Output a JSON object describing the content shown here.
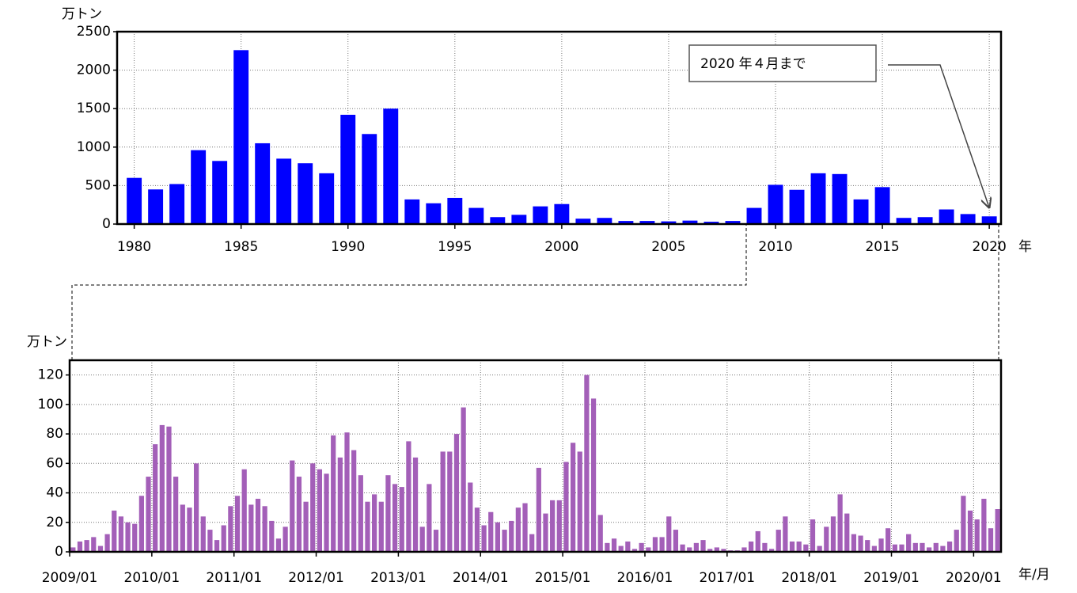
{
  "chart_data": [
    {
      "type": "bar",
      "y_label": "万トン",
      "x_label": "年",
      "annotation": "2020 年４月まで",
      "color": "#0000ff",
      "grid": true,
      "x": [
        1980,
        1981,
        1982,
        1983,
        1984,
        1985,
        1986,
        1987,
        1988,
        1989,
        1990,
        1991,
        1992,
        1993,
        1994,
        1995,
        1996,
        1997,
        1998,
        1999,
        2000,
        2001,
        2002,
        2003,
        2004,
        2005,
        2006,
        2007,
        2008,
        2009,
        2010,
        2011,
        2012,
        2013,
        2014,
        2015,
        2016,
        2017,
        2018,
        2019,
        2020
      ],
      "values": [
        600,
        450,
        520,
        960,
        820,
        2260,
        1050,
        850,
        790,
        660,
        1420,
        1170,
        1500,
        320,
        270,
        340,
        210,
        90,
        120,
        230,
        260,
        70,
        80,
        40,
        40,
        35,
        45,
        30,
        40,
        210,
        510,
        445,
        660,
        650,
        320,
        480,
        80,
        90,
        190,
        130,
        100
      ],
      "xlim": [
        1979.2,
        2020.55
      ],
      "xticks": [
        1980,
        1985,
        1990,
        1995,
        2000,
        2005,
        2010,
        2015,
        2020
      ],
      "ylim": [
        0,
        2500
      ],
      "yticks": [
        0,
        500,
        1000,
        1500,
        2000,
        2500
      ]
    },
    {
      "type": "bar",
      "y_label": "万トン",
      "x_label": "年/月",
      "color": "#a35fb8",
      "grid": true,
      "categories": [
        "2009/01",
        null,
        null,
        null,
        null,
        null,
        null,
        null,
        null,
        null,
        null,
        null,
        "2010/01",
        null,
        null,
        null,
        null,
        null,
        null,
        null,
        null,
        null,
        null,
        null,
        "2011/01",
        null,
        null,
        null,
        null,
        null,
        null,
        null,
        null,
        null,
        null,
        null,
        "2012/01",
        null,
        null,
        null,
        null,
        null,
        null,
        null,
        null,
        null,
        null,
        null,
        "2013/01",
        null,
        null,
        null,
        null,
        null,
        null,
        null,
        null,
        null,
        null,
        null,
        "2014/01",
        null,
        null,
        null,
        null,
        null,
        null,
        null,
        null,
        null,
        null,
        null,
        "2015/01",
        null,
        null,
        null,
        null,
        null,
        null,
        null,
        null,
        null,
        null,
        null,
        "2016/01",
        null,
        null,
        null,
        null,
        null,
        null,
        null,
        null,
        null,
        null,
        null,
        "2017/01",
        null,
        null,
        null,
        null,
        null,
        null,
        null,
        null,
        null,
        null,
        null,
        "2018/01",
        null,
        null,
        null,
        null,
        null,
        null,
        null,
        null,
        null,
        null,
        null,
        "2019/01",
        null,
        null,
        null,
        null,
        null,
        null,
        null,
        null,
        null,
        null,
        null,
        "2020/01",
        null,
        null,
        null
      ],
      "values": [
        3,
        7,
        8,
        10,
        4,
        12,
        28,
        24,
        20,
        19,
        38,
        51,
        73,
        86,
        85,
        51,
        32,
        30,
        60,
        24,
        15,
        8,
        18,
        31,
        38,
        56,
        32,
        36,
        31,
        21,
        9,
        17,
        62,
        51,
        34,
        60,
        56,
        53,
        79,
        64,
        81,
        69,
        52,
        34,
        39,
        34,
        52,
        46,
        44,
        75,
        64,
        17,
        46,
        15,
        68,
        68,
        80,
        98,
        47,
        30,
        18,
        27,
        20,
        15,
        21,
        30,
        33,
        12,
        57,
        26,
        35,
        35,
        61,
        74,
        68,
        120,
        104,
        25,
        6,
        9,
        4,
        7,
        2,
        6,
        3,
        10,
        10,
        24,
        15,
        5,
        3,
        6,
        8,
        2,
        3,
        2,
        1,
        1,
        3,
        7,
        14,
        6,
        2,
        15,
        24,
        7,
        7,
        5,
        22,
        4,
        17,
        24,
        39,
        26,
        12,
        11,
        8,
        4,
        9,
        16,
        5,
        5,
        12,
        6,
        6,
        3,
        6,
        4,
        7,
        15,
        38,
        28,
        22,
        36,
        16,
        29
      ],
      "ylim": [
        0,
        130
      ],
      "yticks": [
        0,
        20,
        40,
        60,
        80,
        100,
        120
      ]
    }
  ]
}
